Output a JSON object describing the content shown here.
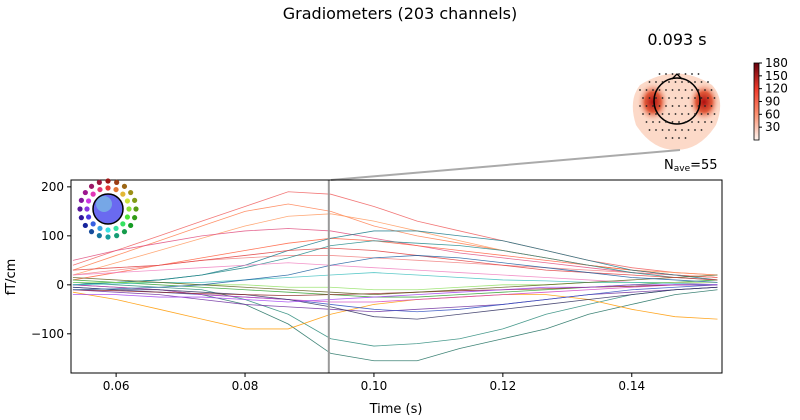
{
  "title": "Gradiometers (203 channels)",
  "topomap": {
    "time_label": "0.093 s",
    "nave_label": "N",
    "nave_sub": "ave",
    "nave_value": "=55"
  },
  "colorbar": {
    "ticks": [
      30,
      60,
      90,
      120,
      150,
      180
    ],
    "range": [
      0,
      180
    ],
    "colormap": "Reds"
  },
  "chart_data": {
    "type": "line",
    "title": "Gradiometers (203 channels)",
    "xlabel": "Time (s)",
    "ylabel": "fT/cm",
    "xlim": [
      0.053,
      0.154
    ],
    "ylim": [
      -180,
      214
    ],
    "xticks": [
      0.06,
      0.08,
      0.1,
      0.12,
      0.14
    ],
    "xtick_labels": [
      "0.06",
      "0.08",
      "0.10",
      "0.12",
      "0.14"
    ],
    "yticks": [
      -100,
      0,
      100,
      200
    ],
    "ytick_labels": [
      "−100",
      "0",
      "100",
      "200"
    ],
    "grid": false,
    "vline_time": 0.093,
    "x": [
      0.0533,
      0.06,
      0.0667,
      0.0733,
      0.08,
      0.0867,
      0.0933,
      0.1,
      0.1067,
      0.1133,
      0.12,
      0.1267,
      0.1333,
      0.14,
      0.1467,
      0.1533
    ],
    "series": [
      {
        "color": "#f06060",
        "values": [
          40,
          70,
          100,
          130,
          160,
          190,
          185,
          160,
          130,
          110,
          90,
          70,
          50,
          35,
          25,
          20
        ]
      },
      {
        "color": "#ff7f50",
        "values": [
          30,
          60,
          90,
          120,
          150,
          165,
          150,
          120,
          100,
          85,
          70,
          55,
          40,
          30,
          20,
          15
        ]
      },
      {
        "color": "#ff9a60",
        "values": [
          20,
          45,
          70,
          95,
          120,
          140,
          145,
          130,
          110,
          90,
          70,
          55,
          40,
          30,
          25,
          20
        ]
      },
      {
        "color": "#e05080",
        "values": [
          50,
          70,
          85,
          100,
          110,
          115,
          110,
          95,
          80,
          65,
          55,
          45,
          35,
          25,
          20,
          15
        ]
      },
      {
        "color": "#ff6040",
        "values": [
          10,
          25,
          40,
          55,
          70,
          85,
          95,
          90,
          80,
          70,
          60,
          50,
          40,
          30,
          20,
          15
        ]
      },
      {
        "color": "#f08080",
        "values": [
          20,
          30,
          40,
          50,
          55,
          60,
          60,
          55,
          50,
          45,
          40,
          35,
          30,
          25,
          20,
          15
        ]
      },
      {
        "color": "#207060",
        "values": [
          0,
          -5,
          -10,
          -20,
          -40,
          -80,
          -140,
          -155,
          -155,
          -130,
          -110,
          -90,
          -60,
          -40,
          -20,
          -10
        ]
      },
      {
        "color": "#2a8a7a",
        "values": [
          5,
          0,
          -5,
          -10,
          -30,
          -60,
          -110,
          -125,
          -120,
          -110,
          -90,
          -60,
          -40,
          -20,
          -10,
          -5
        ]
      },
      {
        "color": "#1a7a8a",
        "values": [
          0,
          5,
          10,
          20,
          40,
          70,
          95,
          110,
          110,
          100,
          90,
          70,
          50,
          30,
          20,
          10
        ]
      },
      {
        "color": "#228888",
        "values": [
          0,
          5,
          10,
          20,
          35,
          55,
          80,
          90,
          85,
          80,
          70,
          55,
          40,
          25,
          15,
          10
        ]
      },
      {
        "color": "#ff9900",
        "values": [
          -15,
          -30,
          -50,
          -70,
          -90,
          -90,
          -60,
          -40,
          -30,
          -25,
          -20,
          -20,
          -30,
          -50,
          -65,
          -70
        ]
      },
      {
        "color": "#7030a0",
        "values": [
          -10,
          -15,
          -20,
          -30,
          -40,
          -45,
          -50,
          -55,
          -50,
          -45,
          -40,
          -30,
          -20,
          -15,
          -10,
          -5
        ]
      },
      {
        "color": "#3050c0",
        "values": [
          -5,
          -10,
          -15,
          -20,
          -25,
          -30,
          -40,
          -50,
          -55,
          -50,
          -40,
          -30,
          -20,
          -10,
          -5,
          0
        ]
      },
      {
        "color": "#30a030",
        "values": [
          10,
          5,
          0,
          -5,
          -10,
          -15,
          -20,
          -25,
          -25,
          -20,
          -15,
          -10,
          -5,
          0,
          5,
          10
        ]
      },
      {
        "color": "#d040c0",
        "values": [
          0,
          -5,
          -10,
          -20,
          -25,
          -30,
          -35,
          -35,
          -30,
          -25,
          -20,
          -15,
          -10,
          -5,
          0,
          0
        ]
      },
      {
        "color": "#303060",
        "values": [
          -5,
          -10,
          -10,
          -15,
          -20,
          -30,
          -45,
          -65,
          -70,
          -60,
          -50,
          -40,
          -30,
          -20,
          -10,
          -5
        ]
      },
      {
        "color": "#f080c0",
        "values": [
          20,
          25,
          30,
          35,
          40,
          45,
          40,
          35,
          30,
          25,
          20,
          15,
          10,
          5,
          5,
          0
        ]
      },
      {
        "color": "#90e060",
        "values": [
          5,
          5,
          5,
          0,
          0,
          -5,
          -5,
          -10,
          -10,
          -5,
          0,
          0,
          5,
          5,
          5,
          5
        ]
      },
      {
        "color": "#8b2020",
        "values": [
          -10,
          -12,
          -15,
          -18,
          -20,
          -22,
          -20,
          -18,
          -15,
          -12,
          -10,
          -8,
          -5,
          -3,
          0,
          0
        ]
      },
      {
        "color": "#40c0c0",
        "values": [
          0,
          2,
          5,
          5,
          10,
          15,
          20,
          25,
          20,
          15,
          10,
          8,
          5,
          5,
          3,
          0
        ]
      },
      {
        "color": "#606020",
        "values": [
          15,
          10,
          5,
          0,
          -5,
          -10,
          -15,
          -20,
          -15,
          -10,
          -5,
          0,
          5,
          10,
          15,
          20
        ]
      },
      {
        "color": "#a040f0",
        "values": [
          -20,
          -20,
          -25,
          -25,
          -30,
          -35,
          -30,
          -25,
          -20,
          -15,
          -10,
          -5,
          -5,
          0,
          0,
          0
        ]
      },
      {
        "color": "#e04040",
        "values": [
          30,
          35,
          40,
          50,
          60,
          70,
          75,
          70,
          60,
          50,
          40,
          30,
          25,
          20,
          15,
          10
        ]
      },
      {
        "color": "#2060a0",
        "values": [
          -10,
          -8,
          -5,
          0,
          10,
          20,
          40,
          55,
          60,
          55,
          45,
          35,
          25,
          15,
          10,
          5
        ]
      }
    ]
  }
}
